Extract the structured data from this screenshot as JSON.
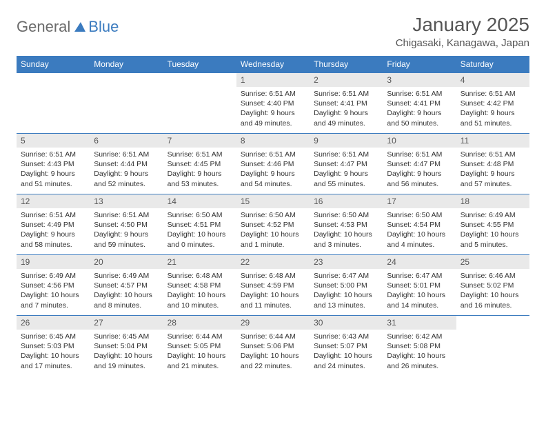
{
  "brand": {
    "part1": "General",
    "part2": "Blue"
  },
  "colors": {
    "accent": "#3b7bbf",
    "header_text": "#ffffff",
    "daynum_bg": "#e9e9e9",
    "text": "#333333",
    "muted": "#555555",
    "background": "#ffffff"
  },
  "title": "January 2025",
  "location": "Chigasaki, Kanagawa, Japan",
  "weekdays": [
    "Sunday",
    "Monday",
    "Tuesday",
    "Wednesday",
    "Thursday",
    "Friday",
    "Saturday"
  ],
  "weeks": [
    [
      {
        "blank": true
      },
      {
        "blank": true
      },
      {
        "blank": true
      },
      {
        "day": "1",
        "sunrise": "6:51 AM",
        "sunset": "4:40 PM",
        "daylight": "9 hours and 49 minutes."
      },
      {
        "day": "2",
        "sunrise": "6:51 AM",
        "sunset": "4:41 PM",
        "daylight": "9 hours and 49 minutes."
      },
      {
        "day": "3",
        "sunrise": "6:51 AM",
        "sunset": "4:41 PM",
        "daylight": "9 hours and 50 minutes."
      },
      {
        "day": "4",
        "sunrise": "6:51 AM",
        "sunset": "4:42 PM",
        "daylight": "9 hours and 51 minutes."
      }
    ],
    [
      {
        "day": "5",
        "sunrise": "6:51 AM",
        "sunset": "4:43 PM",
        "daylight": "9 hours and 51 minutes."
      },
      {
        "day": "6",
        "sunrise": "6:51 AM",
        "sunset": "4:44 PM",
        "daylight": "9 hours and 52 minutes."
      },
      {
        "day": "7",
        "sunrise": "6:51 AM",
        "sunset": "4:45 PM",
        "daylight": "9 hours and 53 minutes."
      },
      {
        "day": "8",
        "sunrise": "6:51 AM",
        "sunset": "4:46 PM",
        "daylight": "9 hours and 54 minutes."
      },
      {
        "day": "9",
        "sunrise": "6:51 AM",
        "sunset": "4:47 PM",
        "daylight": "9 hours and 55 minutes."
      },
      {
        "day": "10",
        "sunrise": "6:51 AM",
        "sunset": "4:47 PM",
        "daylight": "9 hours and 56 minutes."
      },
      {
        "day": "11",
        "sunrise": "6:51 AM",
        "sunset": "4:48 PM",
        "daylight": "9 hours and 57 minutes."
      }
    ],
    [
      {
        "day": "12",
        "sunrise": "6:51 AM",
        "sunset": "4:49 PM",
        "daylight": "9 hours and 58 minutes."
      },
      {
        "day": "13",
        "sunrise": "6:51 AM",
        "sunset": "4:50 PM",
        "daylight": "9 hours and 59 minutes."
      },
      {
        "day": "14",
        "sunrise": "6:50 AM",
        "sunset": "4:51 PM",
        "daylight": "10 hours and 0 minutes."
      },
      {
        "day": "15",
        "sunrise": "6:50 AM",
        "sunset": "4:52 PM",
        "daylight": "10 hours and 1 minute."
      },
      {
        "day": "16",
        "sunrise": "6:50 AM",
        "sunset": "4:53 PM",
        "daylight": "10 hours and 3 minutes."
      },
      {
        "day": "17",
        "sunrise": "6:50 AM",
        "sunset": "4:54 PM",
        "daylight": "10 hours and 4 minutes."
      },
      {
        "day": "18",
        "sunrise": "6:49 AM",
        "sunset": "4:55 PM",
        "daylight": "10 hours and 5 minutes."
      }
    ],
    [
      {
        "day": "19",
        "sunrise": "6:49 AM",
        "sunset": "4:56 PM",
        "daylight": "10 hours and 7 minutes."
      },
      {
        "day": "20",
        "sunrise": "6:49 AM",
        "sunset": "4:57 PM",
        "daylight": "10 hours and 8 minutes."
      },
      {
        "day": "21",
        "sunrise": "6:48 AM",
        "sunset": "4:58 PM",
        "daylight": "10 hours and 10 minutes."
      },
      {
        "day": "22",
        "sunrise": "6:48 AM",
        "sunset": "4:59 PM",
        "daylight": "10 hours and 11 minutes."
      },
      {
        "day": "23",
        "sunrise": "6:47 AM",
        "sunset": "5:00 PM",
        "daylight": "10 hours and 13 minutes."
      },
      {
        "day": "24",
        "sunrise": "6:47 AM",
        "sunset": "5:01 PM",
        "daylight": "10 hours and 14 minutes."
      },
      {
        "day": "25",
        "sunrise": "6:46 AM",
        "sunset": "5:02 PM",
        "daylight": "10 hours and 16 minutes."
      }
    ],
    [
      {
        "day": "26",
        "sunrise": "6:45 AM",
        "sunset": "5:03 PM",
        "daylight": "10 hours and 17 minutes."
      },
      {
        "day": "27",
        "sunrise": "6:45 AM",
        "sunset": "5:04 PM",
        "daylight": "10 hours and 19 minutes."
      },
      {
        "day": "28",
        "sunrise": "6:44 AM",
        "sunset": "5:05 PM",
        "daylight": "10 hours and 21 minutes."
      },
      {
        "day": "29",
        "sunrise": "6:44 AM",
        "sunset": "5:06 PM",
        "daylight": "10 hours and 22 minutes."
      },
      {
        "day": "30",
        "sunrise": "6:43 AM",
        "sunset": "5:07 PM",
        "daylight": "10 hours and 24 minutes."
      },
      {
        "day": "31",
        "sunrise": "6:42 AM",
        "sunset": "5:08 PM",
        "daylight": "10 hours and 26 minutes."
      },
      {
        "blank": true
      }
    ]
  ],
  "labels": {
    "sunrise": "Sunrise:",
    "sunset": "Sunset:",
    "daylight": "Daylight:"
  }
}
